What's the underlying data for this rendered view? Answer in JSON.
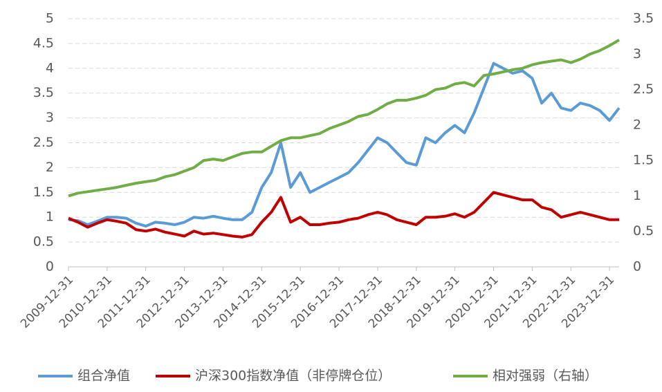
{
  "chart_data": {
    "type": "line",
    "x": [
      "2009-12-31",
      "2010-03-31",
      "2010-06-30",
      "2010-09-30",
      "2010-12-31",
      "2011-03-31",
      "2011-06-30",
      "2011-09-30",
      "2011-12-31",
      "2012-03-31",
      "2012-06-30",
      "2012-09-30",
      "2012-12-31",
      "2013-03-31",
      "2013-06-30",
      "2013-09-30",
      "2013-12-31",
      "2014-03-31",
      "2014-06-30",
      "2014-09-30",
      "2014-12-31",
      "2015-03-31",
      "2015-06-30",
      "2015-09-30",
      "2015-12-31",
      "2016-03-31",
      "2016-06-30",
      "2016-09-30",
      "2016-12-31",
      "2017-03-31",
      "2017-06-30",
      "2017-09-30",
      "2017-12-31",
      "2018-03-31",
      "2018-06-30",
      "2018-09-30",
      "2018-12-31",
      "2019-03-31",
      "2019-06-30",
      "2019-09-30",
      "2019-12-31",
      "2020-03-31",
      "2020-06-30",
      "2020-09-30",
      "2020-12-31",
      "2021-03-31",
      "2021-06-30",
      "2021-09-30",
      "2021-12-31",
      "2022-03-31",
      "2022-06-30",
      "2022-09-30",
      "2022-12-31",
      "2023-03-31",
      "2023-06-30",
      "2023-09-30",
      "2023-12-31",
      "2024-03-31"
    ],
    "xlim": [
      "2009-12-31",
      "2024-03-31"
    ],
    "xticks": [
      "2009-12-31",
      "2010-12-31",
      "2011-12-31",
      "2012-12-31",
      "2013-12-31",
      "2014-12-31",
      "2015-12-31",
      "2016-12-31",
      "2017-12-31",
      "2018-12-31",
      "2019-12-31",
      "2020-12-31",
      "2021-12-31",
      "2022-12-31",
      "2023-12-31"
    ],
    "ylim": [
      0,
      5
    ],
    "yticks": [
      0,
      0.5,
      1,
      1.5,
      2,
      2.5,
      3,
      3.5,
      4,
      4.5,
      5
    ],
    "y2lim": [
      0,
      3.5
    ],
    "y2ticks": [
      0,
      0.5,
      1,
      1.5,
      2,
      2.5,
      3,
      3.5
    ],
    "grid": true,
    "legend": "bottom",
    "series": [
      {
        "name": "组合净值",
        "color": "#5b9bd5",
        "values": [
          0.95,
          0.93,
          0.85,
          0.92,
          1.0,
          1.0,
          0.98,
          0.88,
          0.82,
          0.9,
          0.88,
          0.85,
          0.9,
          1.0,
          0.98,
          1.02,
          0.98,
          0.95,
          0.95,
          1.1,
          1.6,
          1.9,
          2.5,
          1.6,
          1.9,
          1.5,
          1.6,
          1.7,
          1.8,
          1.9,
          2.1,
          2.35,
          2.6,
          2.5,
          2.3,
          2.1,
          2.05,
          2.6,
          2.5,
          2.7,
          2.85,
          2.7,
          3.1,
          3.6,
          4.1,
          4.0,
          3.9,
          3.95,
          3.8,
          3.3,
          3.5,
          3.2,
          3.15,
          3.3,
          3.25,
          3.15,
          2.95,
          3.2
        ]
      },
      {
        "name": "沪深300指数净值（非停牌仓位）",
        "color": "#c00000",
        "values": [
          0.98,
          0.9,
          0.8,
          0.88,
          0.95,
          0.92,
          0.88,
          0.75,
          0.72,
          0.76,
          0.7,
          0.66,
          0.62,
          0.72,
          0.66,
          0.68,
          0.65,
          0.62,
          0.6,
          0.65,
          0.9,
          1.1,
          1.4,
          0.9,
          1.0,
          0.85,
          0.85,
          0.88,
          0.9,
          0.95,
          0.98,
          1.05,
          1.1,
          1.05,
          0.95,
          0.9,
          0.85,
          1.0,
          1.0,
          1.02,
          1.07,
          1.0,
          1.1,
          1.3,
          1.5,
          1.45,
          1.4,
          1.35,
          1.35,
          1.2,
          1.15,
          1.0,
          1.05,
          1.1,
          1.05,
          1.0,
          0.95,
          0.95
        ]
      },
      {
        "name": "相对强弱（右轴）",
        "color": "#70ad47",
        "axis": "y2",
        "values": [
          1.0,
          1.04,
          1.06,
          1.08,
          1.1,
          1.12,
          1.15,
          1.18,
          1.2,
          1.22,
          1.27,
          1.3,
          1.35,
          1.4,
          1.5,
          1.52,
          1.5,
          1.55,
          1.6,
          1.62,
          1.62,
          1.7,
          1.78,
          1.82,
          1.82,
          1.85,
          1.88,
          1.95,
          2.0,
          2.05,
          2.12,
          2.15,
          2.22,
          2.3,
          2.35,
          2.35,
          2.38,
          2.42,
          2.5,
          2.52,
          2.58,
          2.6,
          2.55,
          2.7,
          2.72,
          2.75,
          2.78,
          2.8,
          2.85,
          2.88,
          2.9,
          2.92,
          2.88,
          2.93,
          3.0,
          3.05,
          3.12,
          3.2
        ]
      }
    ]
  }
}
